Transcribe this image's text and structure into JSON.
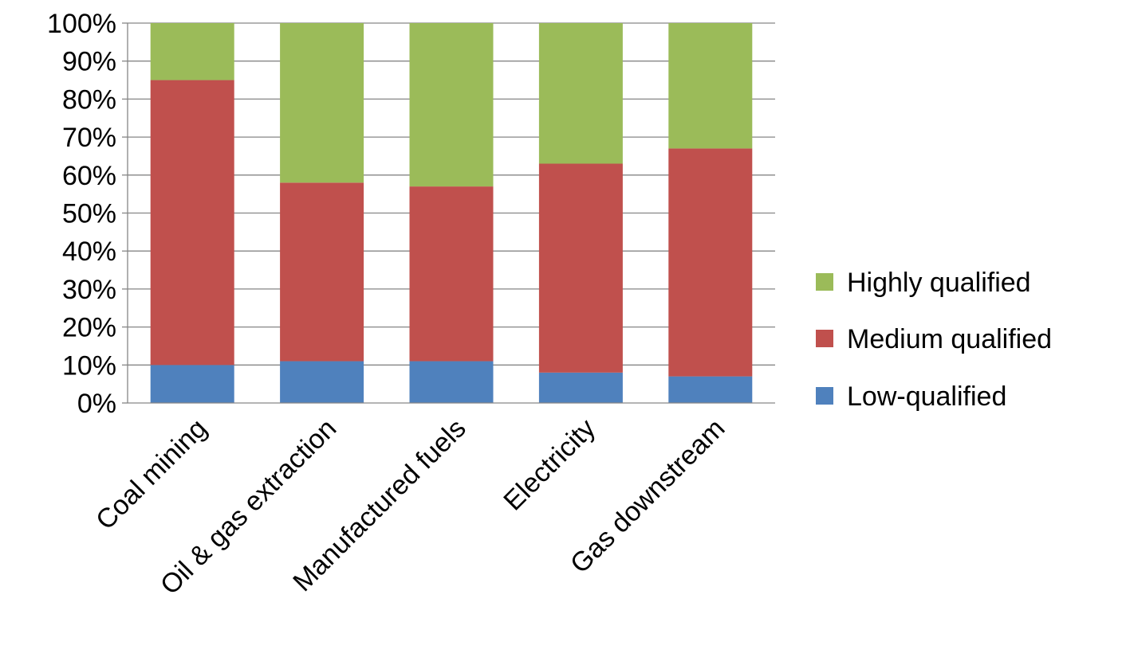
{
  "chart_data": {
    "type": "bar",
    "stacked": "percent",
    "categories": [
      "Coal mining",
      "Oil & gas extraction",
      "Manufactured fuels",
      "Electricity",
      "Gas downstream"
    ],
    "series": [
      {
        "name": "Low-qualified",
        "color": "#4f81bd",
        "values": [
          10,
          11,
          11,
          8,
          7
        ]
      },
      {
        "name": "Medium qualified",
        "color": "#c0504d",
        "values": [
          75,
          47,
          46,
          55,
          60
        ]
      },
      {
        "name": "Highly qualified",
        "color": "#9bbb59",
        "values": [
          15,
          42,
          43,
          37,
          33
        ]
      }
    ],
    "yticks": [
      "0%",
      "10%",
      "20%",
      "30%",
      "40%",
      "50%",
      "60%",
      "70%",
      "80%",
      "90%",
      "100%"
    ],
    "ylim": [
      0,
      100
    ],
    "grid": true,
    "legend_position": "right",
    "legend_order": [
      "Highly qualified",
      "Medium qualified",
      "Low-qualified"
    ]
  }
}
